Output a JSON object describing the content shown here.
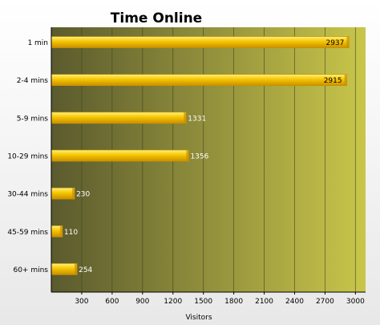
{
  "chart_data": {
    "type": "bar",
    "orientation": "horizontal",
    "title": "Time Online",
    "xlabel": "Visitors",
    "ylabel": "",
    "categories": [
      "1 min",
      "2-4 mins",
      "5-9 mins",
      "10-29 mins",
      "30-44 mins",
      "45-59 mins",
      "60+ mins"
    ],
    "values": [
      2937,
      2915,
      1331,
      1356,
      230,
      110,
      254
    ],
    "value_labels": [
      "2937",
      "2915",
      "1331",
      "1356",
      "230",
      "110",
      "254"
    ],
    "x_ticks": [
      300,
      600,
      900,
      1200,
      1500,
      1800,
      2100,
      2400,
      2700,
      3000
    ],
    "x_tick_labels": [
      "300",
      "600",
      "900",
      "1200",
      "1500",
      "1800",
      "2100",
      "2400",
      "2700",
      "3000"
    ],
    "xlim": [
      0,
      3100
    ],
    "grid": "vertical",
    "legend": "none",
    "colors": {
      "bar": "#f5c400",
      "bar_highlight": "#fff07a",
      "bar_shadow": "#c98f00",
      "plot_bg_left": "#5a5a2e",
      "plot_bg_right": "#c9c64a",
      "grid": "#3e3e22",
      "text": "#000000",
      "value_label": "#ffffff"
    }
  }
}
